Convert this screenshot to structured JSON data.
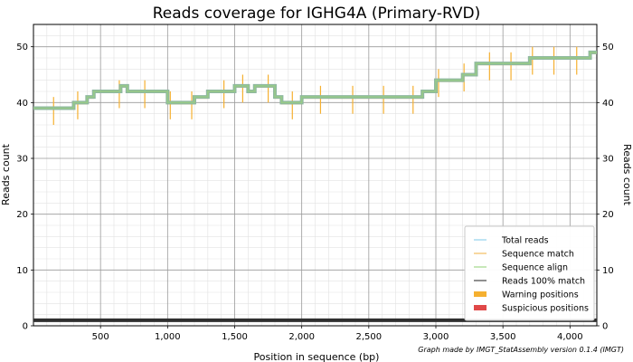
{
  "chart_data": {
    "type": "line",
    "title": "Reads coverage for IGHG4A (Primary-RVD)",
    "xlabel": "Position in sequence (bp)",
    "ylabel": "Reads count",
    "ylabel_right": "Reads count",
    "credit": "Graph made by IMGT_StatAssembly version 0.1.4 (IMGT)",
    "xlim": [
      0,
      4200
    ],
    "ylim": [
      0,
      54
    ],
    "x_ticks": [
      500,
      1000,
      1500,
      2000,
      2500,
      3000,
      3500,
      4000
    ],
    "x_tick_labels": [
      "500",
      "1,000",
      "1,500",
      "2,000",
      "2,500",
      "3,000",
      "3,500",
      "4,000"
    ],
    "y_ticks": [
      0,
      10,
      20,
      30,
      40,
      50
    ],
    "y_tick_labels": [
      "0",
      "10",
      "20",
      "30",
      "40",
      "50"
    ],
    "grid": true,
    "legend_position": "bottom-right",
    "legend": [
      {
        "label": "Total reads",
        "color": "#7ec8e8",
        "style": "line"
      },
      {
        "label": "Sequence match",
        "color": "#f0b040",
        "style": "line"
      },
      {
        "label": "Sequence align",
        "color": "#8fd070",
        "style": "line"
      },
      {
        "label": "Reads 100% match",
        "color": "#202020",
        "style": "line"
      },
      {
        "label": "Warning positions",
        "color": "#f5b030",
        "style": "patch"
      },
      {
        "label": "Suspicious positions",
        "color": "#e04848",
        "style": "patch"
      }
    ],
    "series": [
      {
        "name": "Total reads",
        "color": "#8fb8a0",
        "x": [
          0,
          100,
          200,
          300,
          400,
          450,
          600,
          650,
          700,
          900,
          1000,
          1100,
          1200,
          1300,
          1400,
          1500,
          1600,
          1650,
          1700,
          1800,
          1850,
          1900,
          2000,
          2100,
          2200,
          2300,
          2400,
          2500,
          2600,
          2700,
          2800,
          2900,
          3000,
          3050,
          3150,
          3200,
          3300,
          3500,
          3600,
          3700,
          3900,
          4000,
          4100,
          4150,
          4200
        ],
        "y": [
          39,
          39,
          39,
          40,
          41,
          42,
          42,
          43,
          42,
          42,
          40,
          40,
          41,
          42,
          42,
          43,
          42,
          43,
          43,
          41,
          40,
          40,
          41,
          41,
          41,
          41,
          41,
          41,
          41,
          41,
          41,
          42,
          44,
          44,
          44,
          45,
          47,
          47,
          47,
          48,
          48,
          48,
          48,
          49,
          49
        ]
      },
      {
        "name": "Reads 100% match",
        "color": "#303030",
        "x": [
          0,
          4200
        ],
        "y": [
          1,
          1
        ]
      }
    ],
    "warning_positions": [
      150,
      330,
      640,
      830,
      1020,
      1180,
      1420,
      1560,
      1750,
      1930,
      2140,
      2380,
      2610,
      2830,
      3020,
      3210,
      3400,
      3560,
      3720,
      3880,
      4050
    ]
  }
}
